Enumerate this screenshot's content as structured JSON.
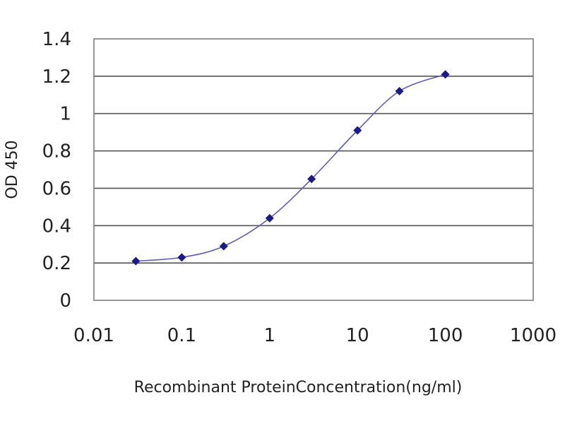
{
  "chart_data": {
    "type": "scatter",
    "xlabel": "Recombinant ProteinConcentration(ng/ml)",
    "ylabel": "OD 450",
    "x_scale": "log",
    "xlim": [
      0.01,
      1000
    ],
    "ylim": [
      0,
      1.4
    ],
    "x_ticks": [
      "0.01",
      "0.1",
      "1",
      "10",
      "100",
      "1000"
    ],
    "y_ticks": [
      "0",
      "0.2",
      "0.4",
      "0.6",
      "0.8",
      "1",
      "1.2",
      "1.4"
    ],
    "grid": "horizontal",
    "legend": "none",
    "series": [
      {
        "x": [
          0.03,
          0.1,
          0.3,
          1,
          3,
          10,
          30,
          100
        ],
        "y": [
          0.21,
          0.23,
          0.29,
          0.44,
          0.65,
          0.91,
          1.12,
          1.21
        ],
        "line": "smooth",
        "marker": "diamond"
      }
    ],
    "colors": {
      "series": "#1a1a8c",
      "line": "#5b5bc8",
      "grid": "#555555",
      "frame": "#777777",
      "background": "#ffffff"
    }
  }
}
